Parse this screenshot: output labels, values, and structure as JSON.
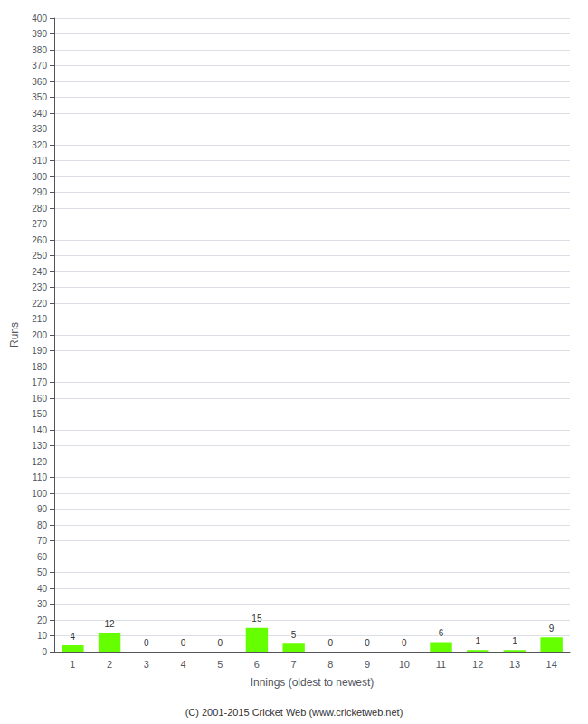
{
  "chart_data": {
    "type": "bar",
    "xlabel": "Innings (oldest to newest)",
    "ylabel": "Runs",
    "categories": [
      1,
      2,
      3,
      4,
      5,
      6,
      7,
      8,
      9,
      10,
      11,
      12,
      13,
      14
    ],
    "values": [
      4,
      12,
      0,
      0,
      0,
      15,
      5,
      0,
      0,
      0,
      6,
      1,
      1,
      9
    ],
    "color": "#66ff00",
    "ylim": [
      0,
      400
    ],
    "yticks": [
      0,
      10,
      20,
      30,
      40,
      50,
      60,
      70,
      80,
      90,
      100,
      110,
      120,
      130,
      140,
      150,
      160,
      170,
      180,
      190,
      200,
      210,
      220,
      230,
      240,
      250,
      260,
      270,
      280,
      290,
      300,
      310,
      320,
      330,
      340,
      350,
      360,
      370,
      380,
      390,
      400
    ],
    "grid": true,
    "data_labels": true,
    "footer": "(C) 2001-2015 Cricket Web (www.cricketweb.net)"
  }
}
